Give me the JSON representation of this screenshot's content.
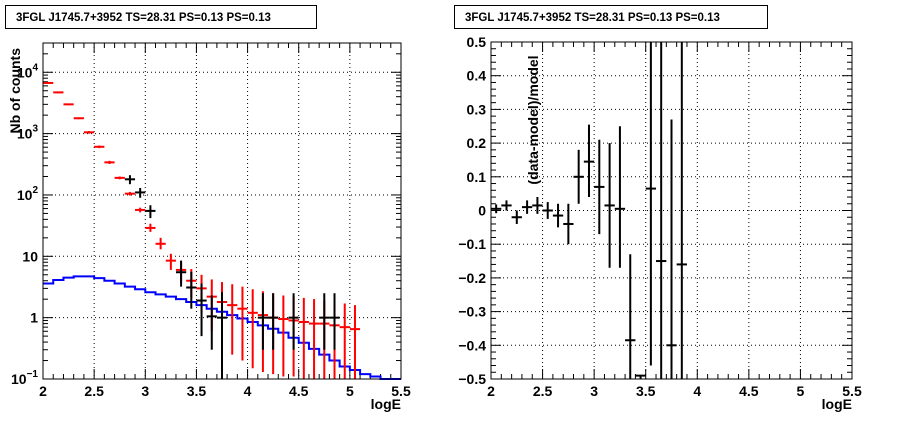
{
  "chart_data": [
    {
      "type": "line",
      "title": "3FGL J1745.7+3952 TS=28.31 PS=0.13 PS=0.13",
      "xlabel": "logE",
      "ylabel": "Nb of counts",
      "xlim": [
        2,
        5.5
      ],
      "ylim": [
        0.1,
        30000
      ],
      "yscale": "log",
      "grid": true,
      "x_ticks": [
        "2",
        "2.5",
        "3",
        "3.5",
        "4",
        "4.5",
        "5",
        "5.5"
      ],
      "y_ticks": [
        "10^-1",
        "1",
        "10",
        "10^2",
        "10^3",
        "10^4"
      ],
      "series": [
        {
          "color": "#ff0000",
          "style": "markers-with-errors",
          "x": [
            2.05,
            2.15,
            2.25,
            2.35,
            2.45,
            2.55,
            2.65,
            2.75,
            2.85,
            2.95,
            3.05,
            3.15,
            3.25,
            3.35,
            3.45,
            3.55,
            3.65,
            3.75,
            3.85,
            3.95,
            4.05,
            4.15,
            4.25,
            4.35,
            4.45,
            4.55,
            4.65,
            4.75,
            4.85,
            4.95,
            5.05
          ],
          "y": [
            6700,
            4700,
            3000,
            1780,
            1050,
            610,
            340,
            190,
            105,
            57,
            29,
            16,
            8.5,
            6,
            4,
            3,
            2.2,
            1.8,
            1.6,
            1.4,
            1.2,
            1.1,
            1.0,
            0.95,
            0.9,
            0.85,
            0.8,
            0.8,
            0.75,
            0.7,
            0.65
          ],
          "ylow": [
            6500,
            4550,
            2900,
            1720,
            1000,
            580,
            320,
            180,
            98,
            52,
            25,
            13,
            6,
            3.8,
            2.1,
            1.2,
            0.6,
            0.35,
            0.25,
            0.2,
            0.15,
            0.13,
            0.12,
            0.11,
            0.11,
            0.1,
            0.1,
            0.1,
            0.1,
            0.1,
            0.1
          ],
          "yhigh": [
            6900,
            4850,
            3100,
            1840,
            1100,
            640,
            360,
            200,
            112,
            62,
            34,
            20,
            11,
            8.5,
            6.2,
            5,
            4.2,
            3.8,
            3.5,
            3.2,
            2.9,
            2.7,
            2.5,
            2.3,
            2.2,
            2.1,
            2.0,
            1.9,
            1.8,
            1.7,
            1.6
          ]
        },
        {
          "color": "#000000",
          "style": "data-points",
          "x": [
            2.85,
            2.95,
            3.05,
            3.35,
            3.45,
            3.55,
            3.65,
            3.75,
            4.15,
            4.25,
            4.45,
            4.75,
            4.85
          ],
          "y": [
            180,
            110,
            55,
            5.5,
            3.1,
            1.9,
            1.05,
            1.0,
            1.0,
            1.0,
            1.0,
            1.0,
            1.0
          ],
          "ylow": [
            150,
            90,
            42,
            3.2,
            1.4,
            0.5,
            0.3,
            0.1,
            0.3,
            0.3,
            0.3,
            0.3,
            0.3
          ],
          "yhigh": [
            210,
            130,
            68,
            8.5,
            5.6,
            3.6,
            2.3,
            2.6,
            2.5,
            2.5,
            2.5,
            2.5,
            2.5
          ]
        },
        {
          "color": "#0000ff",
          "style": "histogram",
          "x": [
            2.05,
            2.15,
            2.25,
            2.35,
            2.45,
            2.55,
            2.65,
            2.75,
            2.85,
            2.95,
            3.05,
            3.15,
            3.25,
            3.35,
            3.45,
            3.55,
            3.65,
            3.75,
            3.85,
            3.95,
            4.05,
            4.15,
            4.25,
            4.35,
            4.45,
            4.55,
            4.65,
            4.75,
            4.85,
            4.95,
            5.05,
            5.15,
            5.25,
            5.35,
            5.45
          ],
          "y": [
            3.6,
            4.1,
            4.5,
            4.7,
            4.7,
            4.4,
            4.0,
            3.6,
            3.2,
            2.9,
            2.6,
            2.4,
            2.2,
            2.0,
            1.8,
            1.6,
            1.4,
            1.25,
            1.1,
            0.97,
            0.85,
            0.75,
            0.66,
            0.57,
            0.47,
            0.39,
            0.31,
            0.25,
            0.2,
            0.16,
            0.14,
            0.12,
            0.11,
            0.1,
            0.1
          ]
        }
      ]
    },
    {
      "type": "scatter",
      "title": "3FGL J1745.7+3952 TS=28.31 PS=0.13 PS=0.13",
      "xlabel": "logE",
      "ylabel": "(data-model)/model",
      "xlim": [
        2,
        5.5
      ],
      "ylim": [
        -0.5,
        0.5
      ],
      "grid": true,
      "x_ticks": [
        "2",
        "2.5",
        "3",
        "3.5",
        "4",
        "4.5",
        "5",
        "5.5"
      ],
      "y_ticks": [
        "−0.5",
        "−0.4",
        "−0.3",
        "−0.2",
        "−0.1",
        "0",
        "0.1",
        "0.2",
        "0.3",
        "0.4",
        "0.5"
      ],
      "series": [
        {
          "color": "#000000",
          "style": "data-points",
          "x": [
            2.05,
            2.15,
            2.25,
            2.35,
            2.45,
            2.55,
            2.65,
            2.75,
            2.85,
            2.95,
            3.05,
            3.15,
            3.25,
            3.35,
            3.45,
            3.55,
            3.65,
            3.75,
            3.85
          ],
          "y": [
            0.005,
            0.015,
            -0.02,
            0.01,
            0.015,
            0.0,
            -0.015,
            -0.04,
            0.1,
            0.145,
            0.07,
            0.015,
            0.005,
            -0.385,
            -0.49,
            0.065,
            -0.15,
            -0.4,
            -0.16
          ],
          "ylow": [
            -0.008,
            0.0,
            -0.04,
            -0.01,
            -0.01,
            -0.025,
            -0.05,
            -0.1,
            0.02,
            0.04,
            -0.07,
            -0.17,
            -0.17,
            -0.5,
            -0.5,
            -0.46,
            -0.5,
            -0.5,
            -0.5
          ],
          "yhigh": [
            0.018,
            0.03,
            0.0,
            0.03,
            0.04,
            0.025,
            0.02,
            0.02,
            0.18,
            0.255,
            0.21,
            0.2,
            0.25,
            -0.13,
            -0.49,
            0.5,
            0.5,
            0.27,
            0.5
          ]
        }
      ]
    }
  ]
}
